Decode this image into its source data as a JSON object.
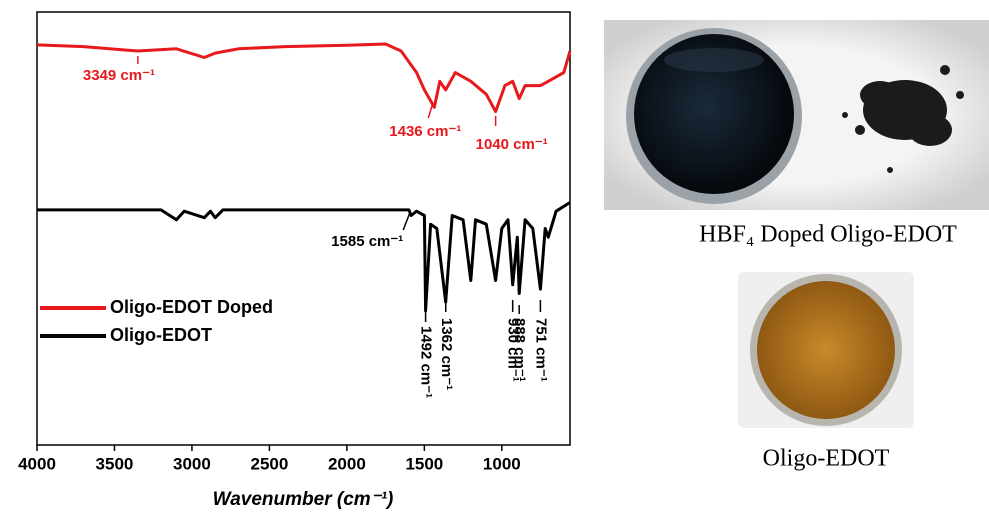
{
  "chart_data": {
    "type": "line",
    "x_label": "Wavenumber (cm⁻¹)",
    "xlim": [
      4000,
      560
    ],
    "ylim": [
      0,
      100
    ],
    "xticks": [
      4000,
      3500,
      3000,
      2500,
      2000,
      1500,
      1000
    ],
    "legend": "left",
    "series": [
      {
        "name": "Oligo-EDOT Doped",
        "color": "#e8191c",
        "x": [
          4000,
          3700,
          3349,
          3100,
          2920,
          2850,
          2700,
          2400,
          2000,
          1750,
          1650,
          1550,
          1500,
          1436,
          1400,
          1362,
          1300,
          1200,
          1100,
          1040,
          980,
          930,
          888,
          850,
          751,
          700,
          600,
          560
        ],
        "y": [
          92.4,
          92,
          91,
          91.5,
          89.5,
          90.5,
          91.5,
          92,
          92.3,
          92.6,
          91,
          86,
          82,
          78,
          84,
          82,
          86,
          84,
          81,
          77,
          83,
          84,
          80,
          83,
          83,
          84,
          86,
          91
        ]
      },
      {
        "name": "Oligo-EDOT",
        "color": "#000000",
        "x": [
          4000,
          3200,
          3100,
          3050,
          2920,
          2880,
          2850,
          2800,
          1600,
          1585,
          1550,
          1500,
          1492,
          1460,
          1420,
          1362,
          1320,
          1250,
          1200,
          1170,
          1100,
          1040,
          1000,
          960,
          930,
          900,
          888,
          850,
          800,
          751,
          720,
          700,
          650,
          560
        ],
        "y": [
          54.3,
          54.3,
          52,
          54,
          52.5,
          54,
          52.5,
          54.3,
          54.3,
          53,
          54,
          53,
          31,
          51,
          50,
          33,
          53,
          52,
          38,
          52,
          51,
          38,
          50,
          52,
          37,
          48,
          35,
          52,
          50,
          36,
          50,
          48,
          54,
          56
        ]
      }
    ],
    "annotations": [
      {
        "text": "3349 cm⁻¹",
        "x": 3349,
        "series": 0
      },
      {
        "text": "1436 cm⁻¹",
        "x": 1436,
        "series": 0
      },
      {
        "text": "1040 cm⁻¹",
        "x": 1040,
        "series": 0
      },
      {
        "text": "1585 cm⁻¹",
        "x": 1585,
        "series": 1
      },
      {
        "text": "1492 cm⁻¹",
        "x": 1492,
        "series": 1
      },
      {
        "text": "1362 cm⁻¹",
        "x": 1362,
        "series": 1
      },
      {
        "text": "930 cm⁻¹",
        "x": 930,
        "series": 1
      },
      {
        "text": "888 cm⁻¹",
        "x": 888,
        "series": 1
      },
      {
        "text": "751 cm⁻¹",
        "x": 751,
        "series": 1
      }
    ]
  },
  "photos": {
    "doped_caption": "HBF₄ Doped Oligo-EDOT",
    "undoped_caption": "Oligo-EDOT"
  }
}
